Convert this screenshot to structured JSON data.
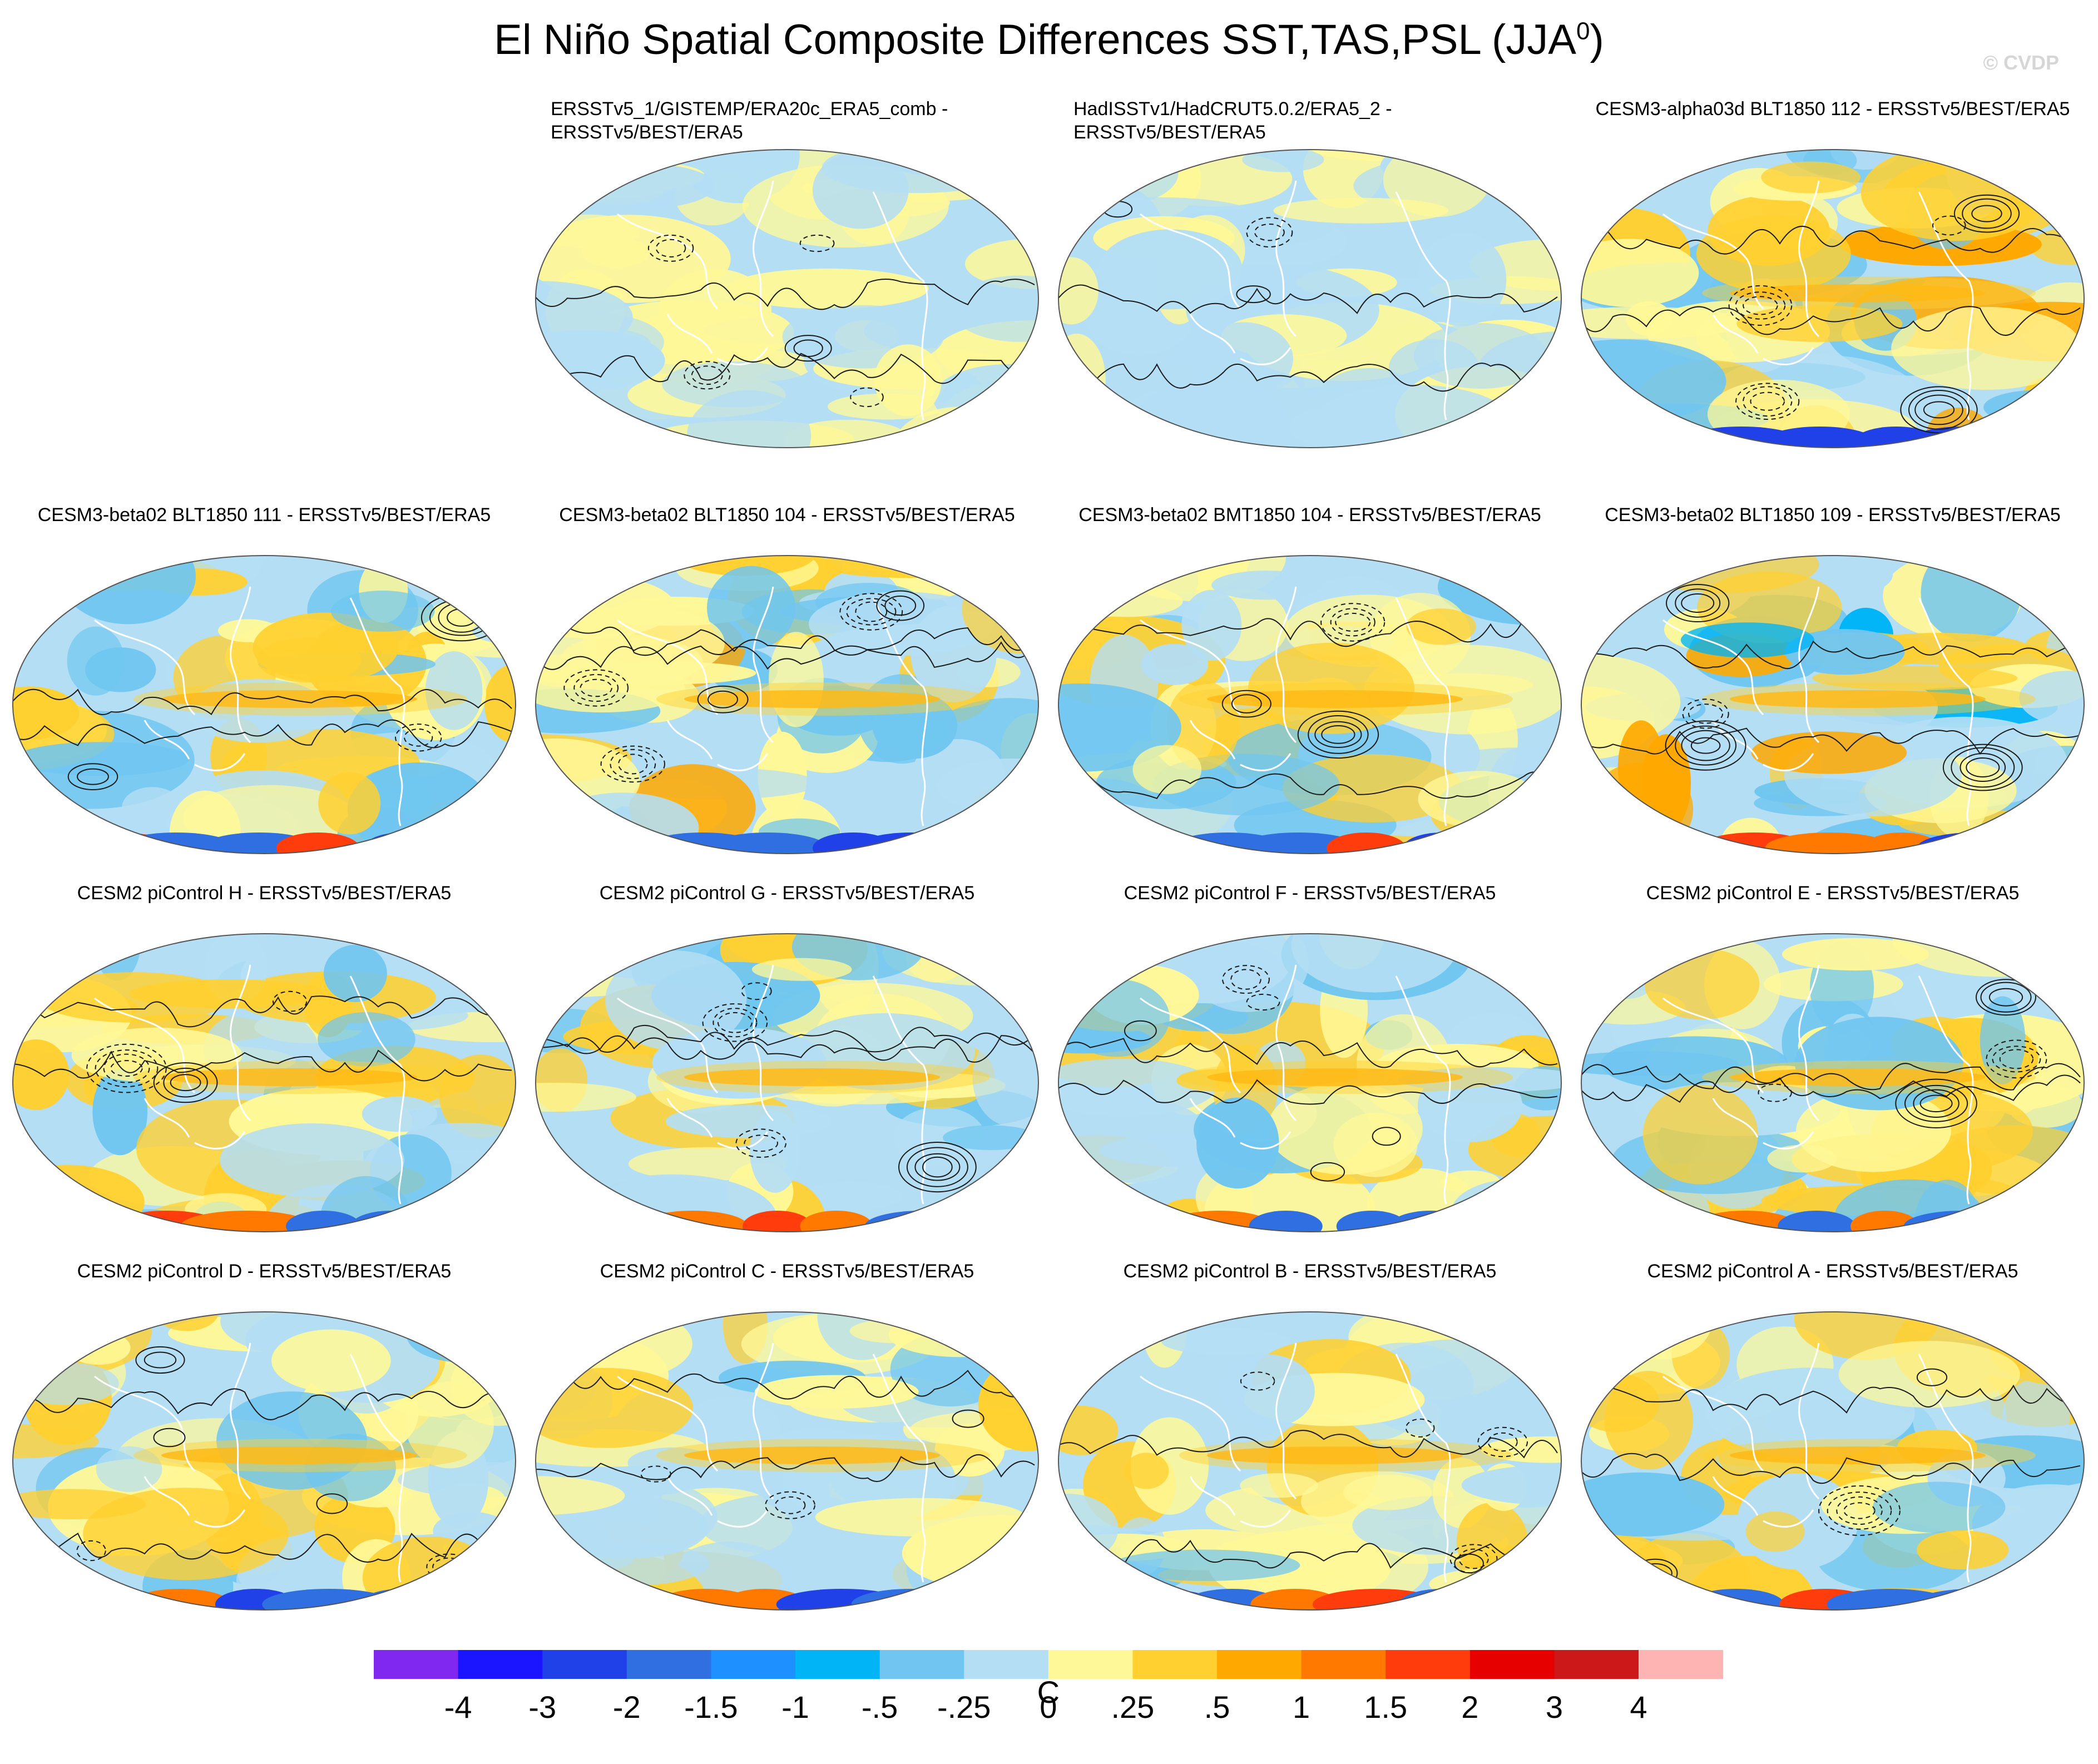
{
  "title": "El Niño Spatial Composite Differences SST,TAS,PSL (JJA",
  "title_sup": "0",
  "title_close": ")",
  "watermark": "© CVDP",
  "colorbar_unit": "C",
  "chart_data": {
    "type": "heatmap",
    "description_variables": [
      "SST",
      "TAS",
      "PSL"
    ],
    "season": "JJA0",
    "levels": [
      "-4",
      "-3",
      "-2",
      "-1.5",
      "-1",
      "-.5",
      "-.25",
      "0",
      ".25",
      ".5",
      "1",
      "1.5",
      "2",
      "3",
      "4"
    ],
    "colors": [
      "#8028f0",
      "#1a14ff",
      "#2040e8",
      "#2f6fe2",
      "#1f90ff",
      "#00b4f6",
      "#70c6f0",
      "#b4def4",
      "#fff898",
      "#ffd030",
      "#ffa800",
      "#ff7800",
      "#ff3c0c",
      "#e60000",
      "#cc1818",
      "#ffb4b4"
    ],
    "panels": [
      {
        "row": 0,
        "col": 1,
        "title": "ERSSTv5_1/GISTEMP/ERA20c_ERA5_comb -\nERSSTv5/BEST/ERA5",
        "intensity": 0.35
      },
      {
        "row": 0,
        "col": 2,
        "title": "HadISSTv1/HadCRUT5.0.2/ERA5_2 -\nERSSTv5/BEST/ERA5",
        "intensity": 0.3
      },
      {
        "row": 0,
        "col": 3,
        "title": "CESM3-alpha03d BLT1850 112 - ERSSTv5/BEST/ERA5",
        "intensity": 0.9
      },
      {
        "row": 1,
        "col": 0,
        "title": "CESM3-beta02 BLT1850 111 - ERSSTv5/BEST/ERA5",
        "intensity": 0.8
      },
      {
        "row": 1,
        "col": 1,
        "title": "CESM3-beta02 BLT1850 104 - ERSSTv5/BEST/ERA5",
        "intensity": 0.9
      },
      {
        "row": 1,
        "col": 2,
        "title": "CESM3-beta02 BMT1850 104 - ERSSTv5/BEST/ERA5",
        "intensity": 0.9
      },
      {
        "row": 1,
        "col": 3,
        "title": "CESM3-beta02 BLT1850 109 - ERSSTv5/BEST/ERA5",
        "intensity": 1.0
      },
      {
        "row": 2,
        "col": 0,
        "title": "CESM2 piControl H - ERSSTv5/BEST/ERA5",
        "intensity": 0.8
      },
      {
        "row": 2,
        "col": 1,
        "title": "CESM2 piControl G - ERSSTv5/BEST/ERA5",
        "intensity": 0.8
      },
      {
        "row": 2,
        "col": 2,
        "title": "CESM2 piControl F - ERSSTv5/BEST/ERA5",
        "intensity": 0.7
      },
      {
        "row": 2,
        "col": 3,
        "title": "CESM2 piControl E - ERSSTv5/BEST/ERA5",
        "intensity": 0.85
      },
      {
        "row": 3,
        "col": 0,
        "title": "CESM2 piControl D - ERSSTv5/BEST/ERA5",
        "intensity": 0.7
      },
      {
        "row": 3,
        "col": 1,
        "title": "CESM2 piControl C - ERSSTv5/BEST/ERA5",
        "intensity": 0.6
      },
      {
        "row": 3,
        "col": 2,
        "title": "CESM2 piControl B - ERSSTv5/BEST/ERA5",
        "intensity": 0.65
      },
      {
        "row": 3,
        "col": 3,
        "title": "CESM2 piControl A - ERSSTv5/BEST/ERA5",
        "intensity": 0.75
      }
    ]
  }
}
